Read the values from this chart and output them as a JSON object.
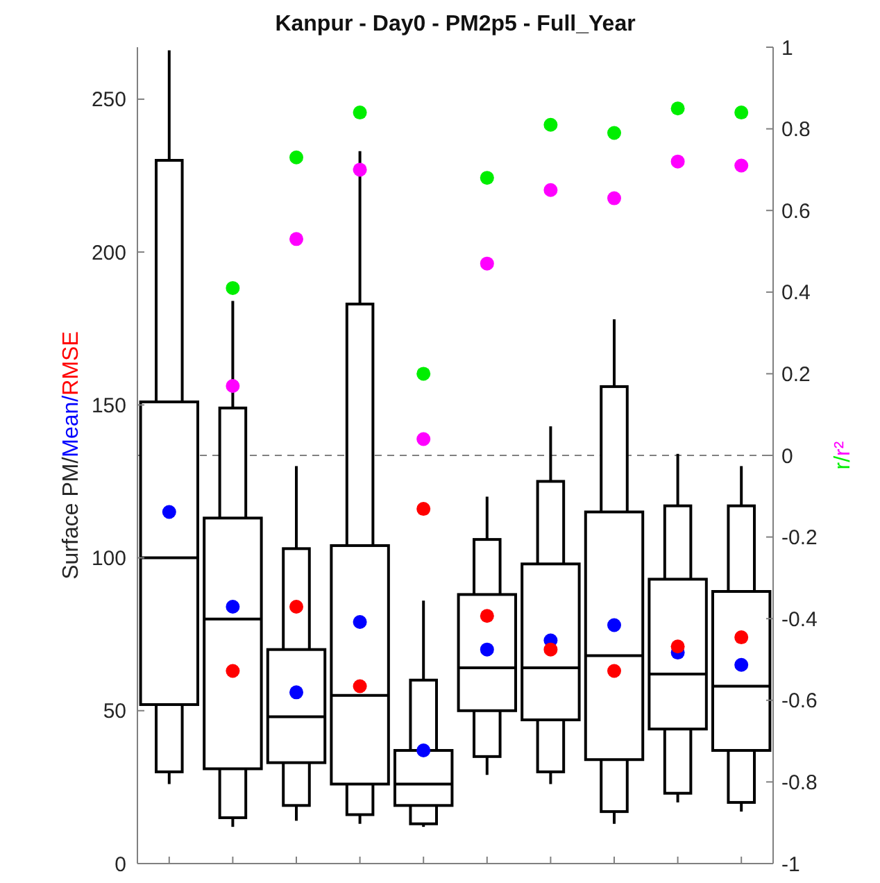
{
  "chart_data": {
    "type": "box",
    "title": "Kanpur - Day0 - PM2p5 - Full_Year",
    "ylabel": "Surface PM/Mean/RMSE",
    "y2label": "r/r²",
    "categories": [
      null,
      null,
      null,
      null,
      null,
      null,
      null,
      null,
      null,
      null
    ],
    "ylim": [
      0,
      267
    ],
    "yticks": [
      0,
      50,
      100,
      150,
      200,
      250
    ],
    "y2lim": [
      -1,
      1
    ],
    "y2ticks": [
      -1,
      -0.8,
      -0.6,
      -0.4,
      -0.2,
      0,
      0.2,
      0.4,
      0.6,
      0.8,
      1
    ],
    "grid": false,
    "marker": "circle",
    "ref_lines": [
      {
        "axis": "y2",
        "value": 0,
        "color": "#808080",
        "line_style": "dashed"
      }
    ],
    "series": [
      {
        "color": "#000000",
        "boxes": [
          {
            "low": 26,
            "q1": 30,
            "median": 100,
            "q3": 230,
            "high": 266
          },
          {
            "low": 12,
            "q1": 15,
            "median": 80,
            "q3": 149,
            "high": 184
          },
          {
            "low": 14,
            "q1": 19,
            "median": 48,
            "q3": 103,
            "high": 130
          },
          {
            "low": 13,
            "q1": 16,
            "median": 55,
            "q3": 183,
            "high": 233
          },
          {
            "low": 12,
            "q1": 13,
            "median": 26,
            "q3": 60,
            "high": 86
          },
          {
            "low": 29,
            "q1": 35,
            "median": 64,
            "q3": 106,
            "high": 120
          },
          {
            "low": 26,
            "q1": 30,
            "median": 64,
            "q3": 125,
            "high": 143
          },
          {
            "low": 13,
            "q1": 17,
            "median": 68,
            "q3": 156,
            "high": 178
          },
          {
            "low": 20,
            "q1": 23,
            "median": 62,
            "q3": 117,
            "high": 134
          },
          {
            "low": 17,
            "q1": 20,
            "median": 58,
            "q3": 117,
            "high": 130
          }
        ]
      },
      {
        "color": "#000000",
        "boxes": [
          {
            "low": 52,
            "q1": 52,
            "median": 100,
            "q3": 151,
            "high": 151
          },
          {
            "low": 31,
            "q1": 31,
            "median": 80,
            "q3": 113,
            "high": 113
          },
          {
            "low": 33,
            "q1": 33,
            "median": 48,
            "q3": 70,
            "high": 70
          },
          {
            "low": 26,
            "q1": 26,
            "median": 55,
            "q3": 104,
            "high": 104
          },
          {
            "low": 19,
            "q1": 19,
            "median": 26,
            "q3": 37,
            "high": 37
          },
          {
            "low": 50,
            "q1": 50,
            "median": 64,
            "q3": 88,
            "high": 88
          },
          {
            "low": 47,
            "q1": 47,
            "median": 64,
            "q3": 98,
            "high": 98
          },
          {
            "low": 34,
            "q1": 34,
            "median": 68,
            "q3": 115,
            "high": 115
          },
          {
            "low": 44,
            "q1": 44,
            "median": 62,
            "q3": 93,
            "high": 93
          },
          {
            "low": 37,
            "q1": 37,
            "median": 58,
            "q3": 89,
            "high": 89
          }
        ]
      },
      {
        "type": "scatter",
        "color": "#0000ff",
        "values": [
          115,
          84,
          56,
          79,
          37,
          70,
          73,
          78,
          69,
          65
        ]
      },
      {
        "type": "scatter",
        "color": "#ff0000",
        "values": [
          null,
          63,
          84,
          58,
          116,
          81,
          70,
          63,
          71,
          74
        ]
      },
      {
        "type": "scatter",
        "color": "#00ee00",
        "axis": "y2",
        "values": [
          null,
          0.41,
          0.73,
          0.84,
          0.2,
          0.68,
          0.81,
          0.79,
          0.85,
          0.84
        ]
      },
      {
        "type": "scatter",
        "color": "#ff00ff",
        "axis": "y2",
        "values": [
          null,
          0.17,
          0.53,
          0.7,
          0.04,
          0.47,
          0.65,
          0.63,
          0.72,
          0.71
        ]
      }
    ]
  }
}
